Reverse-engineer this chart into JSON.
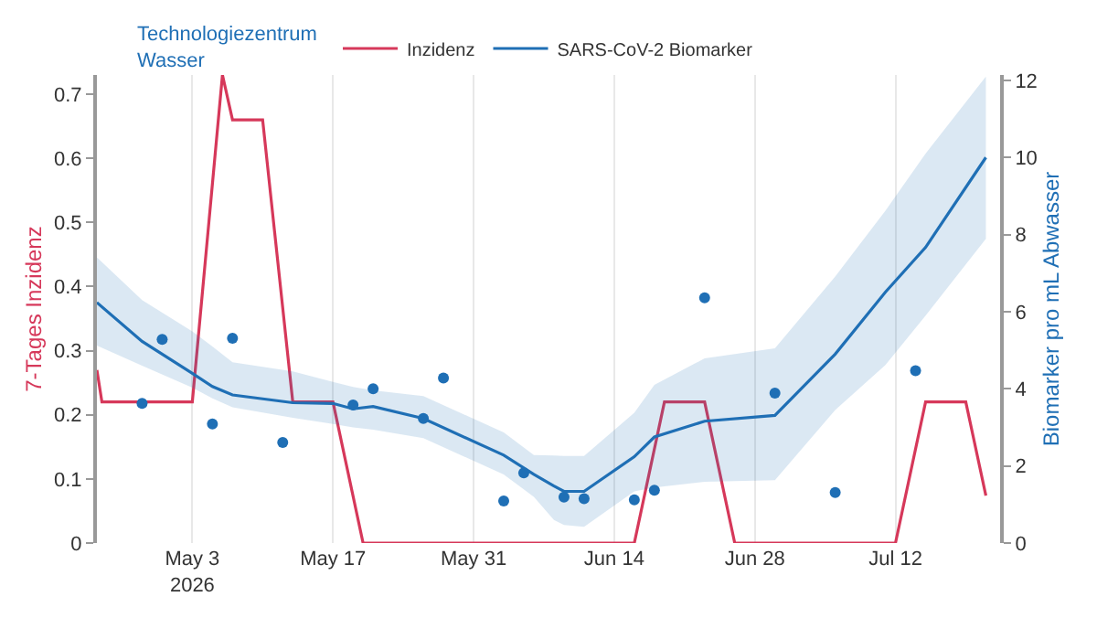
{
  "chart_data": {
    "type": "line",
    "annotations": [
      "Technologiezentrum\nWasser"
    ],
    "ylabel": "7-Tages Inzidenz",
    "y2label": "Biomarker pro mL Abwasser",
    "xlim": [
      "2026-04-23T12:00",
      "2026-07-22T10:00"
    ],
    "xticks": [
      {
        "value": "2026-05-03",
        "label": "May 3\n2026"
      },
      {
        "value": "2026-05-17",
        "label": "May 17"
      },
      {
        "value": "2026-05-31",
        "label": "May 31"
      },
      {
        "value": "2026-06-14",
        "label": "Jun 14"
      },
      {
        "value": "2026-06-28",
        "label": "Jun 28"
      },
      {
        "value": "2026-07-12",
        "label": "Jul 12"
      }
    ],
    "ylim": [
      0,
      0.73
    ],
    "yticks": [
      0,
      0.1,
      0.2,
      0.3,
      0.4,
      0.5,
      0.6,
      0.7
    ],
    "y2lim": [
      0,
      12.14
    ],
    "y2ticks": [
      0,
      2,
      4,
      6,
      8,
      10,
      12
    ],
    "grid": "x",
    "legend": "top",
    "series": [
      {
        "name": "Inzidenz",
        "axis": "y",
        "color": "#d6385a",
        "x": [
          "2026-04-23T12:00",
          "2026-04-24",
          "2026-05-03",
          "2026-05-06",
          "2026-05-07",
          "2026-05-10",
          "2026-05-13",
          "2026-05-17",
          "2026-05-20",
          "2026-06-16",
          "2026-06-19",
          "2026-06-23",
          "2026-06-26",
          "2026-07-12",
          "2026-07-15",
          "2026-07-19",
          "2026-07-21"
        ],
        "values": [
          0.27,
          0.22,
          0.22,
          0.73,
          0.66,
          0.66,
          0.22,
          0.22,
          0,
          0,
          0.22,
          0.22,
          0,
          0,
          0.22,
          0.22,
          0.074
        ]
      },
      {
        "name": "SARS-CoV-2 Biomarker",
        "axis": "y2",
        "color": "#1f6fb5",
        "x": [
          "2026-04-23T12:00",
          "2026-04-28",
          "2026-05-03",
          "2026-05-05",
          "2026-05-07",
          "2026-05-13",
          "2026-05-17",
          "2026-05-19",
          "2026-05-21",
          "2026-05-26",
          "2026-06-03",
          "2026-06-06",
          "2026-06-08",
          "2026-06-09",
          "2026-06-11",
          "2026-06-16",
          "2026-06-18",
          "2026-06-23",
          "2026-06-30",
          "2026-07-06",
          "2026-07-11",
          "2026-07-15",
          "2026-07-21"
        ],
        "values": [
          6.24,
          5.23,
          4.4,
          4.06,
          3.84,
          3.64,
          3.62,
          3.48,
          3.54,
          3.23,
          2.28,
          1.78,
          1.48,
          1.34,
          1.34,
          2.24,
          2.75,
          3.16,
          3.31,
          4.9,
          6.51,
          7.67,
          10.0
        ],
        "upper": [
          7.41,
          6.3,
          5.49,
          5.1,
          4.69,
          4.45,
          4.18,
          4.05,
          3.96,
          3.81,
          2.87,
          2.28,
          2.27,
          2.26,
          2.26,
          3.38,
          4.1,
          4.79,
          5.05,
          6.91,
          8.62,
          10.1,
          12.1
        ],
        "lower": [
          5.12,
          4.6,
          4.03,
          3.75,
          3.52,
          3.25,
          3.09,
          3.0,
          2.94,
          2.72,
          1.78,
          1.2,
          0.6,
          0.47,
          0.42,
          1.34,
          1.44,
          1.59,
          1.63,
          3.45,
          4.62,
          5.9,
          7.89
        ]
      },
      {
        "type": "scatter",
        "axis": "y2",
        "color": "#1f6fb5",
        "marker": "circle",
        "x": [
          "2026-04-28",
          "2026-04-30",
          "2026-05-05",
          "2026-05-07",
          "2026-05-12",
          "2026-05-19",
          "2026-05-21",
          "2026-05-26",
          "2026-05-28",
          "2026-06-03",
          "2026-06-05",
          "2026-06-09",
          "2026-06-11",
          "2026-06-16",
          "2026-06-18",
          "2026-06-23",
          "2026-06-30",
          "2026-07-06",
          "2026-07-14"
        ],
        "values": [
          3.62,
          5.28,
          3.09,
          5.31,
          2.61,
          3.58,
          4.0,
          3.23,
          4.28,
          1.09,
          1.82,
          1.19,
          1.15,
          1.12,
          1.37,
          6.36,
          3.89,
          1.31,
          4.47
        ]
      }
    ]
  }
}
